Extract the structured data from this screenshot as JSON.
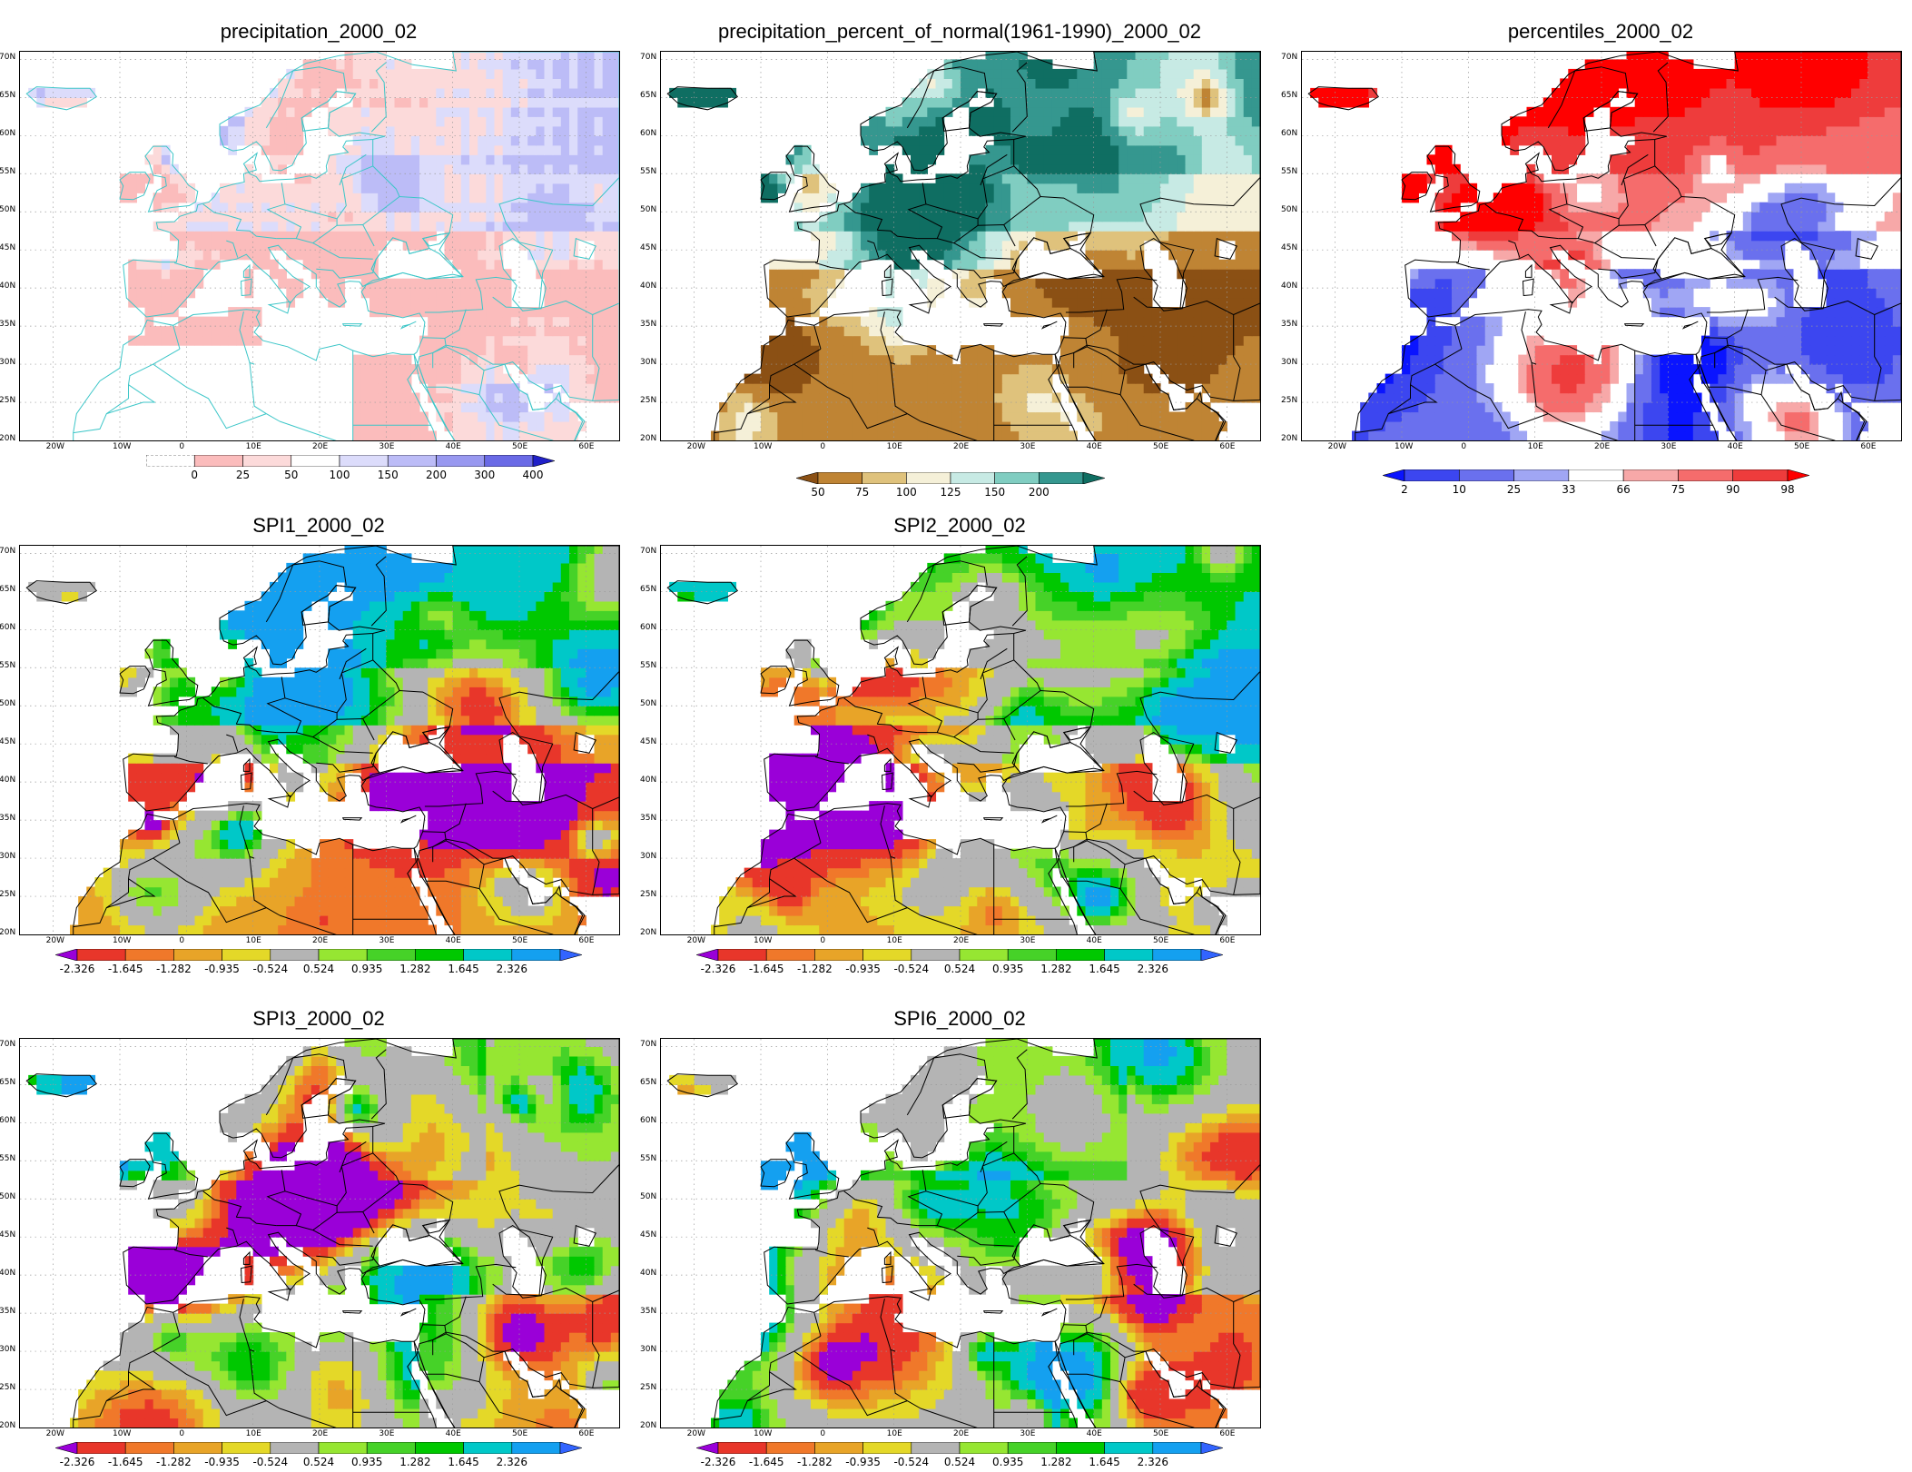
{
  "lat_labels": [
    "70N",
    "65N",
    "60N",
    "55N",
    "50N",
    "45N",
    "40N",
    "35N",
    "30N",
    "25N",
    "20N"
  ],
  "lon_labels": [
    "20W",
    "10W",
    "0",
    "10E",
    "20E",
    "30E",
    "40E",
    "50E",
    "60E"
  ],
  "panels": [
    {
      "id": "precip",
      "title": "precipitation_2000_02",
      "type": "precip",
      "borders": "#3cc6c8",
      "colorbar": {
        "colors": [
          "#ffffff",
          "#fbbcbc",
          "#fcdada",
          "#ffffff",
          "#dcdcfb",
          "#bcbcf7",
          "#9898f0",
          "#6a6ae6",
          "#2020c8"
        ],
        "labels": [
          "0",
          "25",
          "50",
          "100",
          "150",
          "200",
          "300",
          "400"
        ],
        "left_arrow": false,
        "right_arrow": true
      }
    },
    {
      "id": "pnormal",
      "title": "precipitation_percent_of_normal(1961-1990)_2000_02",
      "type": "pnormal",
      "borders": "#000000",
      "colorbar": {
        "colors": [
          "#8b5014",
          "#bf8434",
          "#dfc27c",
          "#f5f0d8",
          "#c7eae4",
          "#80cdc1",
          "#35978f",
          "#0f6e62"
        ],
        "labels": [
          "50",
          "75",
          "100",
          "125",
          "150",
          "200"
        ],
        "left_arrow": true,
        "right_arrow": true
      }
    },
    {
      "id": "percentiles",
      "title": "percentiles_2000_02",
      "type": "percentiles",
      "borders": "#000000",
      "colorbar": {
        "colors": [
          "#0a14ff",
          "#3c46f0",
          "#6a70ee",
          "#a0a6f4",
          "#ffffff",
          "#f7a8a8",
          "#f56c6c",
          "#ee3c3c",
          "#ff0000"
        ],
        "labels": [
          "2",
          "10",
          "25",
          "33",
          "66",
          "75",
          "90",
          "98"
        ],
        "left_arrow": true,
        "right_arrow": true
      }
    },
    {
      "id": "spi1",
      "title": "SPI1_2000_02",
      "type": "spi1",
      "borders": "#000000",
      "colorbar": "spi"
    },
    {
      "id": "spi2",
      "title": "SPI2_2000_02",
      "type": "spi2",
      "borders": "#000000",
      "colorbar": "spi"
    },
    {
      "id": "spi3",
      "title": "SPI3_2000_02",
      "type": "spi3",
      "borders": "#000000",
      "colorbar": "spi"
    },
    {
      "id": "spi6",
      "title": "SPI6_2000_02",
      "type": "spi6",
      "borders": "#000000",
      "colorbar": "spi"
    }
  ],
  "spi_colorbar": {
    "colors": [
      "#9a00d8",
      "#e8362a",
      "#f0782a",
      "#e8a428",
      "#e4d828",
      "#b4b4b4",
      "#96e632",
      "#46d228",
      "#00c800",
      "#00c8c8",
      "#14a0f0",
      "#3264ff"
    ],
    "labels": [
      "-2.326",
      "-1.645",
      "-1.282",
      "-0.935",
      "-0.524",
      "0.524",
      "0.935",
      "1.282",
      "1.645",
      "2.326"
    ],
    "left_arrow": true,
    "right_arrow": true
  }
}
